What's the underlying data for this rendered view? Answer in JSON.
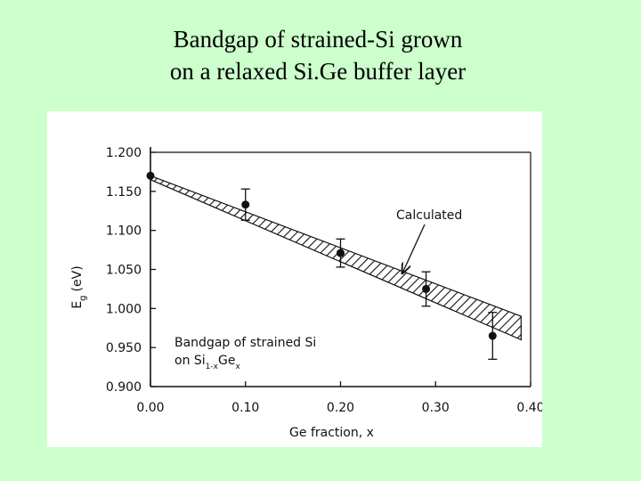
{
  "slide": {
    "title_line1": "Bandgap of strained-Si grown",
    "title_line2": "on a relaxed Si.Ge buffer layer"
  },
  "colors": {
    "background": "#ccffcc",
    "panel": "#ffffff",
    "ink": "#111111"
  },
  "chart_data": {
    "type": "scatter",
    "title": "",
    "xlabel": "Ge fraction, x",
    "ylabel": "E",
    "ylabel_subscript": "g",
    "ylabel_unit": "(eV)",
    "xlim": [
      0.0,
      0.4
    ],
    "ylim": [
      0.9,
      1.2
    ],
    "xticks": [
      0.0,
      0.1,
      0.2,
      0.3,
      0.4
    ],
    "xtick_labels": [
      "0.00",
      "0.10",
      "0.20",
      "0.30",
      "0.40"
    ],
    "yticks": [
      0.9,
      0.95,
      1.0,
      1.05,
      1.1,
      1.15,
      1.2
    ],
    "ytick_labels": [
      "0.900",
      "0.950",
      "1.000",
      "1.050",
      "1.100",
      "1.150",
      "1.200"
    ],
    "grid": false,
    "series": [
      {
        "points": [
          {
            "x": 0.0,
            "y": 1.17,
            "err": 0.0
          },
          {
            "x": 0.1,
            "y": 1.133,
            "err": 0.02
          },
          {
            "x": 0.2,
            "y": 1.071,
            "err": 0.018
          },
          {
            "x": 0.29,
            "y": 1.025,
            "err": 0.022
          },
          {
            "x": 0.36,
            "y": 0.965,
            "err": 0.03
          }
        ]
      }
    ],
    "band": {
      "name": "Calculated",
      "upper": [
        {
          "x": 0.0,
          "y": 1.17
        },
        {
          "x": 0.39,
          "y": 0.99
        }
      ],
      "lower": [
        {
          "x": 0.0,
          "y": 1.165
        },
        {
          "x": 0.39,
          "y": 0.96
        }
      ]
    },
    "annotations": {
      "calculated_label": "Calculated",
      "inset_line1": "Bandgap of strained Si",
      "inset_on": "on Si",
      "inset_sub_1mx": "1-x",
      "inset_ge": "Ge",
      "inset_sub_x": "x"
    }
  }
}
